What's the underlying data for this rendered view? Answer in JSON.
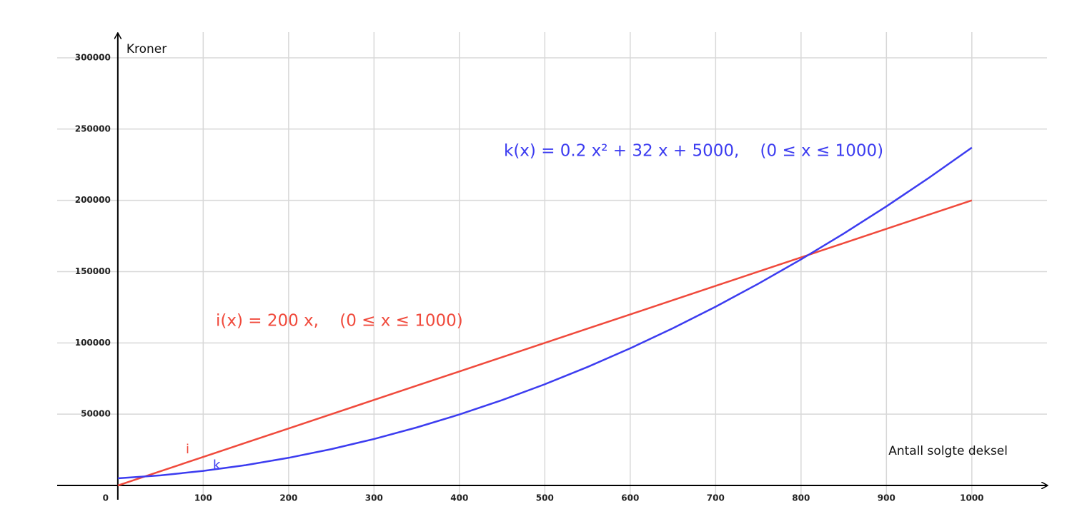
{
  "chart_data": {
    "type": "line",
    "x_label": "Antall solgte deksel",
    "y_label": "Kroner",
    "x": [
      0,
      50,
      100,
      150,
      200,
      250,
      300,
      350,
      400,
      450,
      500,
      550,
      600,
      650,
      700,
      750,
      800,
      850,
      900,
      950,
      1000
    ],
    "series": [
      {
        "name": "i",
        "color": "#f04a3c",
        "values": [
          0,
          10000,
          20000,
          30000,
          40000,
          50000,
          60000,
          70000,
          80000,
          90000,
          100000,
          110000,
          120000,
          130000,
          140000,
          150000,
          160000,
          170000,
          180000,
          190000,
          200000
        ]
      },
      {
        "name": "k",
        "color": "#3c3cf0",
        "values": [
          5000,
          7100,
          10200,
          14300,
          19400,
          25500,
          32600,
          40700,
          49800,
          59900,
          71000,
          83100,
          96200,
          110300,
          125400,
          141500,
          158600,
          176700,
          195800,
          215900,
          237000
        ]
      }
    ],
    "annotations": [
      "i(x) = 200 x,    (0 ≤ x ≤ 1000)",
      "k(x) = 0.2 x² + 32 x + 5000,    (0 ≤ x ≤ 1000)"
    ],
    "xlim": [
      -71,
      1088
    ],
    "ylim": [
      -10000,
      318000
    ],
    "xticks": [
      0,
      100,
      200,
      300,
      400,
      500,
      600,
      700,
      800,
      900,
      1000
    ],
    "yticks": [
      50000,
      100000,
      150000,
      200000,
      250000,
      300000
    ],
    "grid": true
  }
}
